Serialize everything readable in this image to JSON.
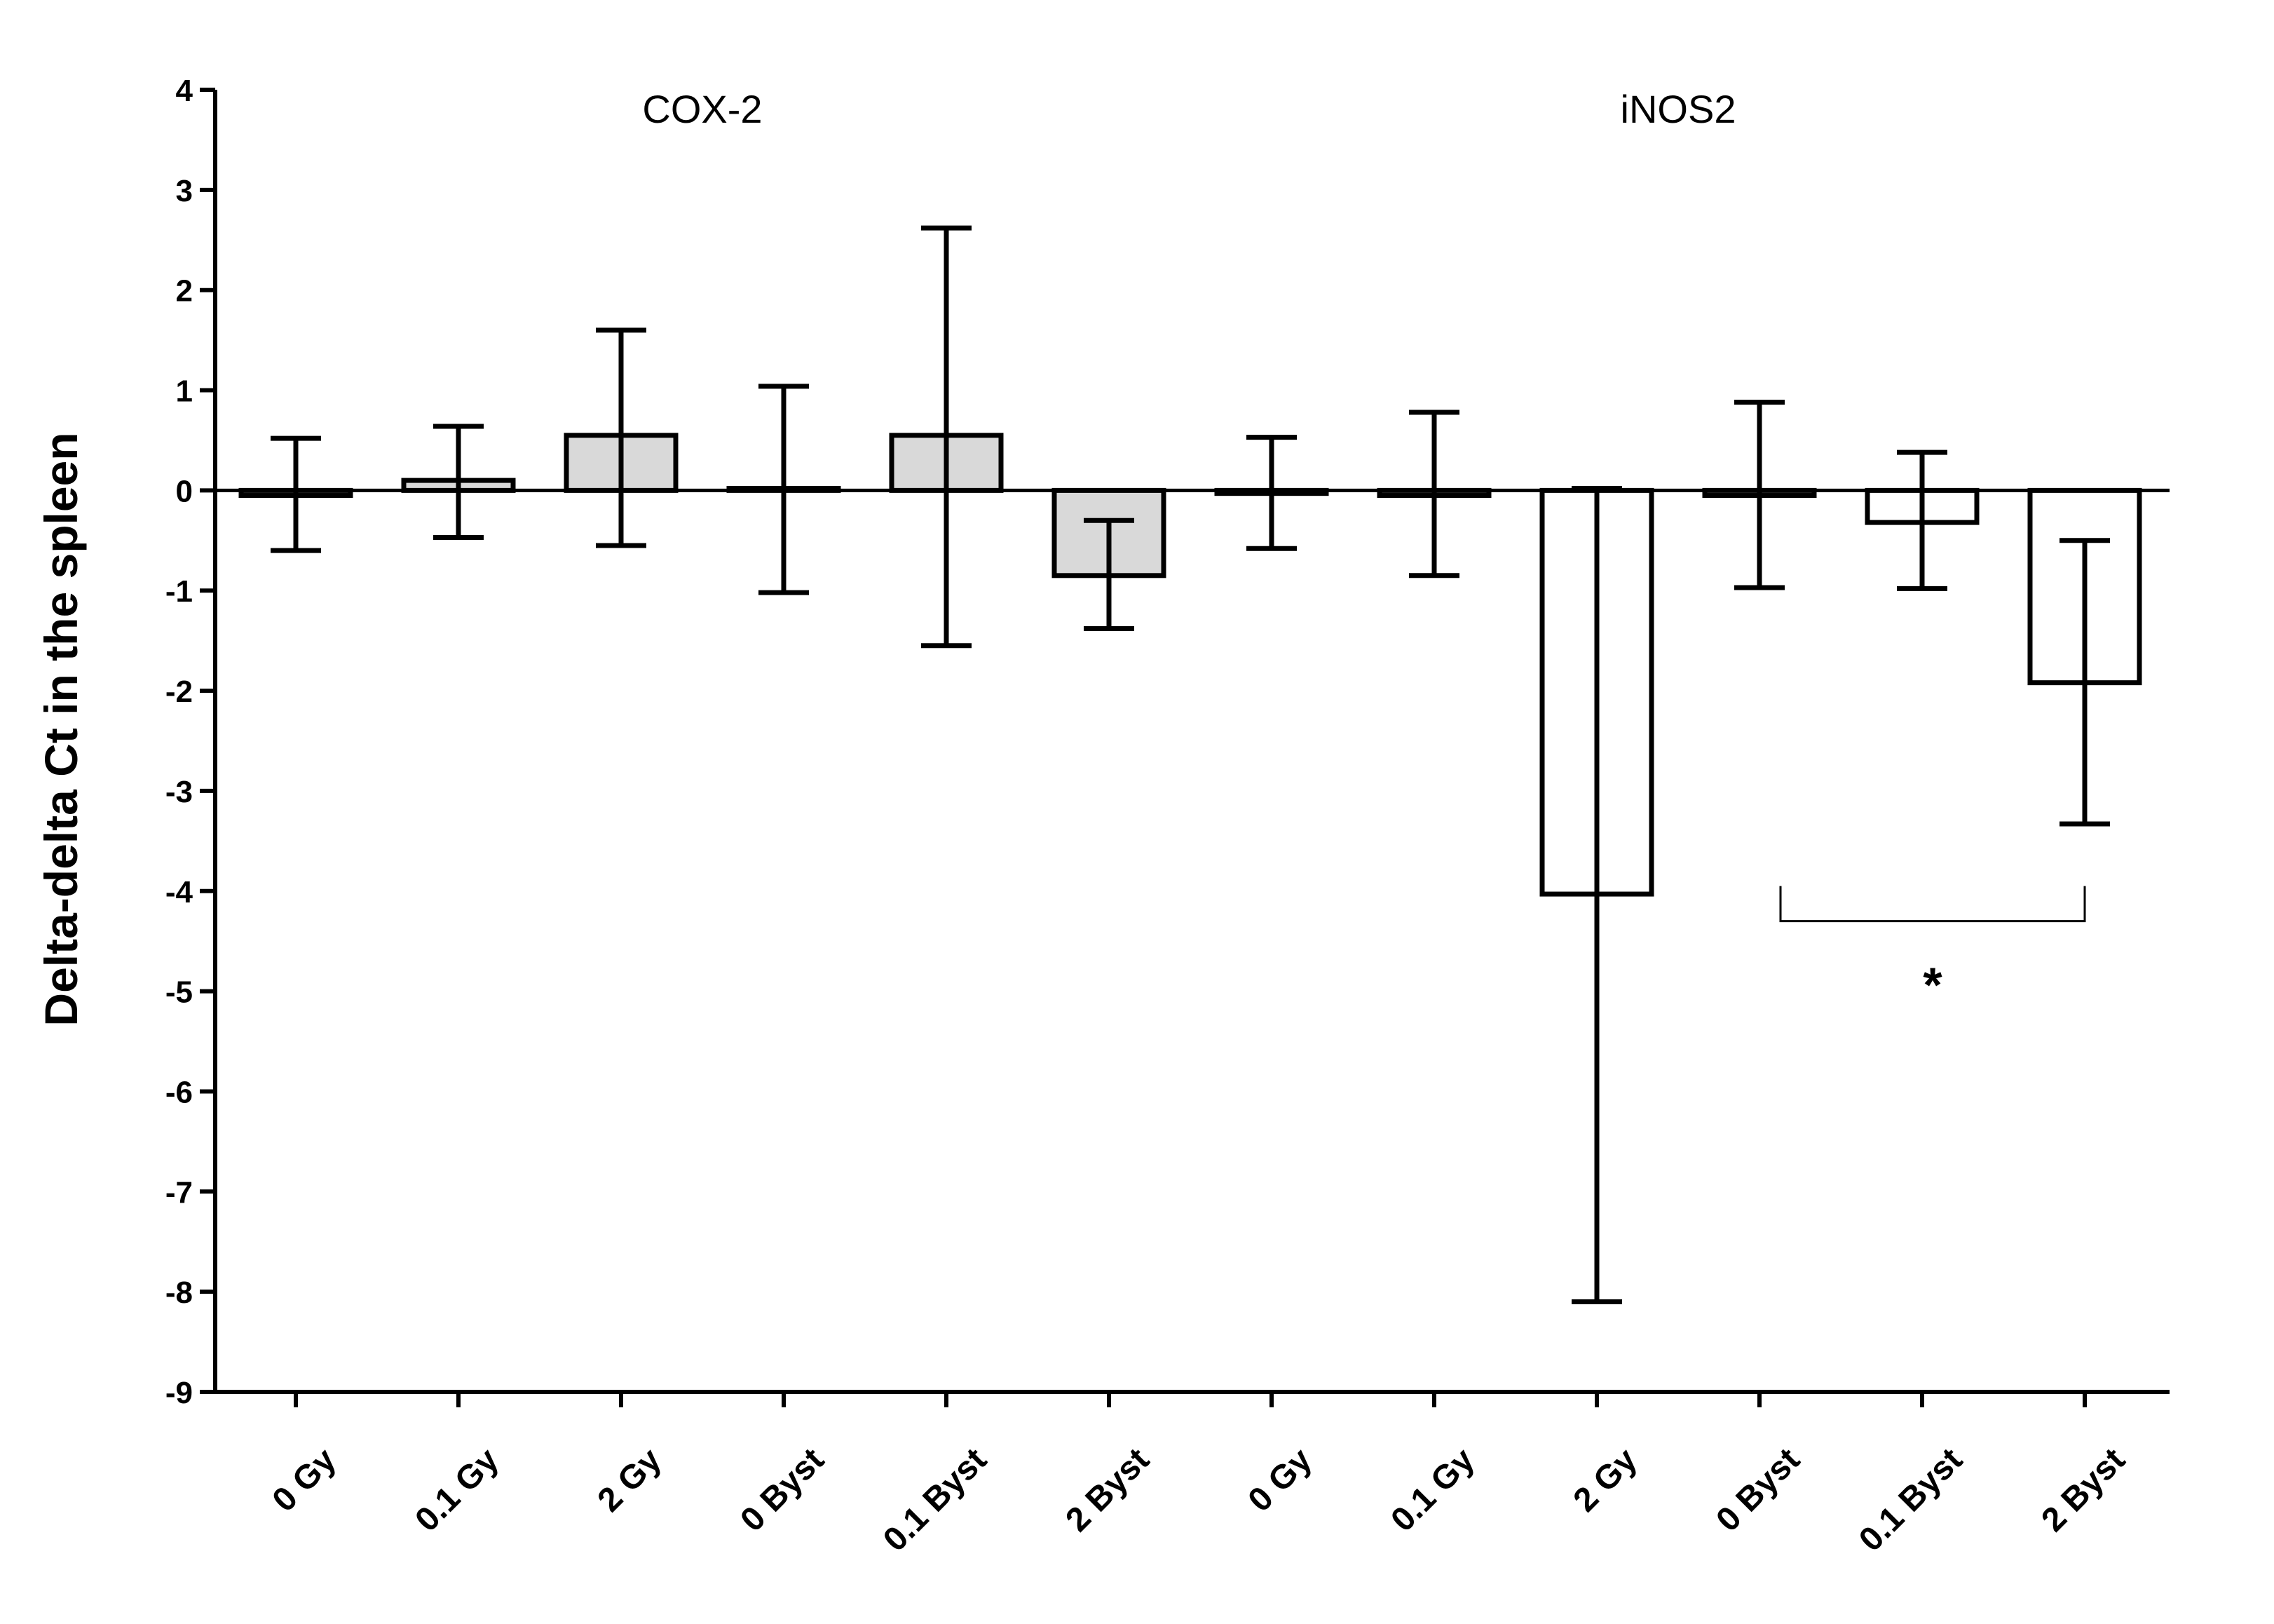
{
  "chart_data": {
    "type": "bar",
    "title": "",
    "xlabel": "",
    "ylabel": "Delta-delta Ct in the spleen",
    "ylim": [
      -9,
      4
    ],
    "yticks": [
      4,
      3,
      2,
      1,
      0,
      -1,
      -2,
      -3,
      -4,
      -5,
      -6,
      -7,
      -8,
      -9
    ],
    "grid": false,
    "categories": [
      "0 Gy",
      "0.1 Gy",
      "2 Gy",
      "0 Byst",
      "0.1 Byst",
      "2 Byst",
      "0 Gy",
      "0.1 Gy",
      "2 Gy",
      "0 Byst",
      "0.1 Byst",
      "2 Byst"
    ],
    "groups": [
      {
        "name": "COX-2",
        "start": 0,
        "end": 5,
        "fill": "#d9d9d9"
      },
      {
        "name": "iNOS2",
        "start": 6,
        "end": 11,
        "fill": "#ffffff"
      }
    ],
    "values": [
      -0.05,
      0.1,
      0.55,
      0.02,
      0.55,
      -0.85,
      -0.03,
      -0.05,
      -4.03,
      -0.05,
      -0.32,
      -1.92
    ],
    "err_low": [
      -0.6,
      -0.47,
      -0.55,
      -1.02,
      -1.55,
      -1.38,
      -0.58,
      -0.85,
      -8.1,
      -0.97,
      -0.98,
      -3.33
    ],
    "err_high": [
      0.52,
      0.64,
      1.6,
      1.04,
      2.62,
      -0.3,
      0.53,
      0.78,
      0.02,
      0.88,
      0.38,
      -0.5
    ],
    "annotations": [
      {
        "text": "*",
        "from": 9,
        "to": 11,
        "y": -4.3
      }
    ],
    "colors": {
      "axis": "#000000",
      "bar_stroke": "#000000"
    }
  }
}
